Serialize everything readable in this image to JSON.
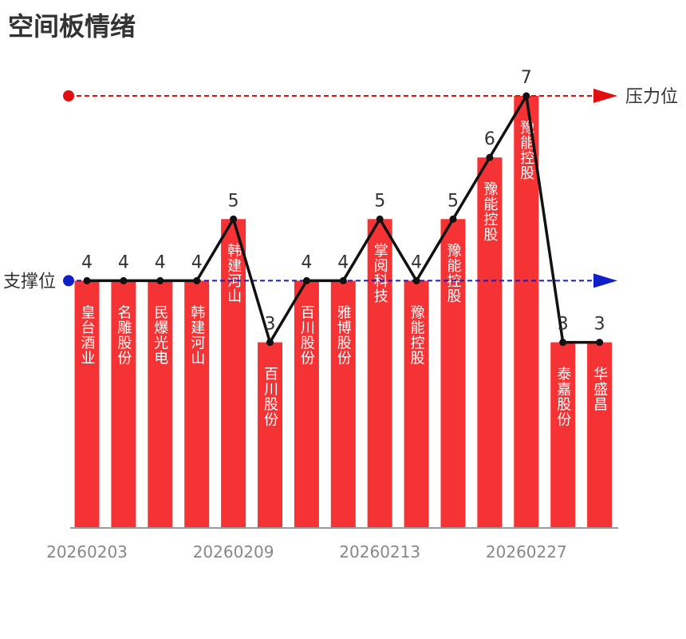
{
  "title": "空间板情绪",
  "colors": {
    "bar": "#f53234",
    "line": "#111111",
    "pressure": "#e01010",
    "support": "#1020c8",
    "axis": "#999999"
  },
  "chart_data": {
    "type": "bar",
    "title": "空间板情绪",
    "categories": [
      "皇台酒业",
      "名雕股份",
      "民爆光电",
      "韩建河山",
      "韩建河山",
      "百川股份",
      "百川股份",
      "雅博股份",
      "掌阅科技",
      "豫能控股",
      "豫能控股",
      "豫能控股",
      "豫能控股",
      "泰嘉股份",
      "华盛昌"
    ],
    "values": [
      4,
      4,
      4,
      4,
      5,
      3,
      4,
      4,
      5,
      4,
      5,
      6,
      7,
      3,
      3
    ],
    "x_ticks": [
      {
        "index": 0,
        "label": "20260203"
      },
      {
        "index": 4,
        "label": "20260209"
      },
      {
        "index": 8,
        "label": "20260213"
      },
      {
        "index": 12,
        "label": "20260227"
      }
    ],
    "overlay_line": "values",
    "reference_lines": [
      {
        "label": "压力位",
        "value": 7,
        "style": "dashed",
        "color": "#e01010",
        "label_position": "right"
      },
      {
        "label": "支撑位",
        "value": 4,
        "style": "dashed",
        "color": "#1020c8",
        "label_position": "left"
      }
    ],
    "ylim": [
      0,
      7
    ],
    "grid": false
  }
}
